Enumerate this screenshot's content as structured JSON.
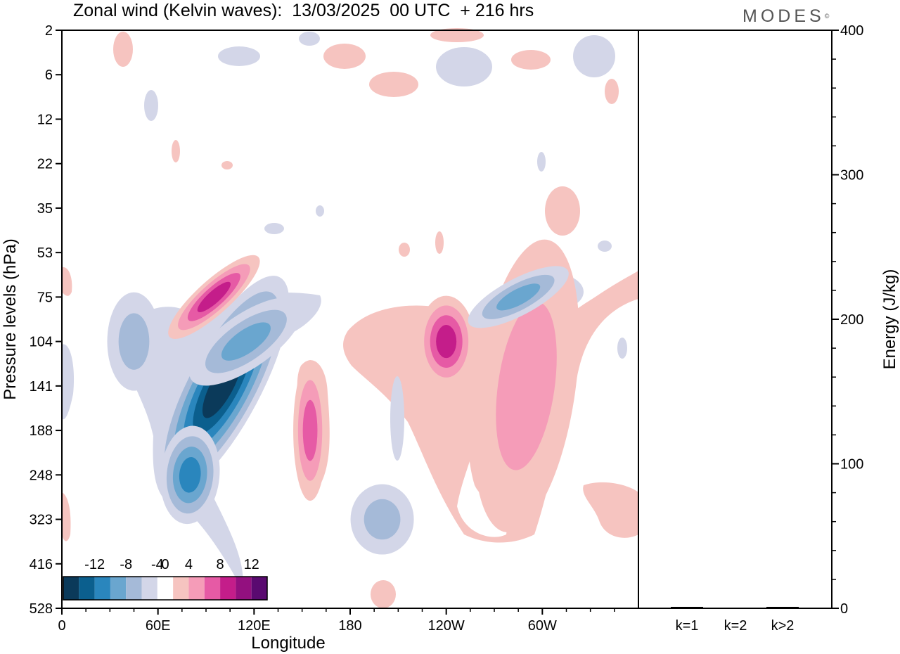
{
  "header": {
    "title": "Zonal wind (Kelvin waves):  13/03/2025  00 UTC  + 216 hrs",
    "brand": "MODES"
  },
  "chart_data": [
    {
      "type": "heatmap",
      "title": "Zonal wind (Kelvin waves):  13/03/2025  00 UTC  + 216 hrs",
      "xlabel": "Longitude",
      "ylabel": "Pressure levels (hPa)",
      "x_ticks": [
        "0",
        "60E",
        "120E",
        "180",
        "120W",
        "60W"
      ],
      "x_tick_degrees": [
        0,
        60,
        120,
        180,
        240,
        300
      ],
      "xlim": [
        0,
        360
      ],
      "y_ticks": [
        "2",
        "6",
        "12",
        "22",
        "35",
        "53",
        "75",
        "104",
        "141",
        "188",
        "248",
        "323",
        "416",
        "528"
      ],
      "y_scale": "categorical pressure levels (log-like), 2 hPa at top",
      "colorbar": {
        "levels": [
          -14,
          -12,
          -10,
          -8,
          -6,
          -4,
          -2,
          2,
          4,
          6,
          8,
          10,
          12,
          14
        ],
        "labels": [
          "-12",
          "-8",
          "-4",
          "0",
          "4",
          "8",
          "12"
        ],
        "label_values": [
          -12,
          -8,
          -4,
          0,
          4,
          8,
          12
        ],
        "colors": [
          "#0b3a5a",
          "#0b5f8e",
          "#2a86bd",
          "#6aa6cf",
          "#a5bad8",
          "#d3d6e8",
          "#ffffff",
          "#f6c4c0",
          "#f59cb8",
          "#e65aa5",
          "#c41d8a",
          "#93107f",
          "#5a0a70"
        ]
      },
      "features": [
        {
          "name": "negative core",
          "lon": 100,
          "level": "141",
          "value": -12
        },
        {
          "name": "negative tail",
          "lon": 80,
          "level": "248",
          "value": -8
        },
        {
          "name": "negative upper band",
          "lon": 115,
          "level": "104",
          "value": -6
        },
        {
          "name": "negative western",
          "lon": 45,
          "level": "104",
          "value": -4
        },
        {
          "name": "positive tilted band",
          "lon": 95,
          "level": "75",
          "value": 8
        },
        {
          "name": "positive 120W",
          "lon": 240,
          "level": "104",
          "value": 8
        },
        {
          "name": "positive eastern",
          "lon": 290,
          "level": "141",
          "value": 4
        },
        {
          "name": "negative 60W upper",
          "lon": 285,
          "level": "75",
          "value": -6
        },
        {
          "name": "negative lower 160W",
          "lon": 200,
          "level": "323",
          "value": -4
        },
        {
          "name": "positive 160E",
          "lon": 155,
          "level": "188",
          "value": 6
        }
      ]
    },
    {
      "type": "bar",
      "categories": [
        "k=1",
        "k=2",
        "k>2"
      ],
      "values": [
        0.5,
        0.0,
        0.5
      ],
      "ylabel": "Energy (J/kg)",
      "ylim": [
        0,
        400
      ],
      "y_ticks": [
        "0",
        "100",
        "200",
        "300",
        "400"
      ],
      "y_tick_values": [
        0,
        100,
        200,
        300,
        400
      ]
    }
  ]
}
